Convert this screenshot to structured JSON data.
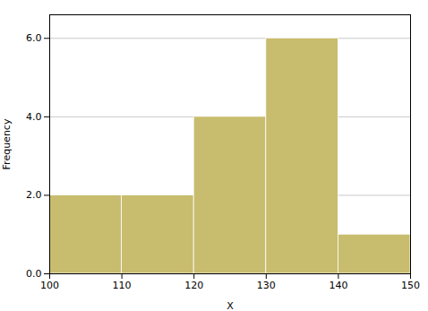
{
  "chart_data": {
    "type": "histogram",
    "bins": [
      100,
      110,
      120,
      130,
      140,
      150
    ],
    "values": [
      2,
      2,
      4,
      6,
      1
    ],
    "color": "#c8bc6e",
    "xlabel": "X",
    "ylabel": "Frequency",
    "xlim": [
      100,
      150
    ],
    "ylim": [
      0,
      6.6
    ],
    "xticks": [
      100,
      110,
      120,
      130,
      140,
      150
    ],
    "yticks": [
      0,
      2,
      4,
      6
    ],
    "grid": true
  }
}
